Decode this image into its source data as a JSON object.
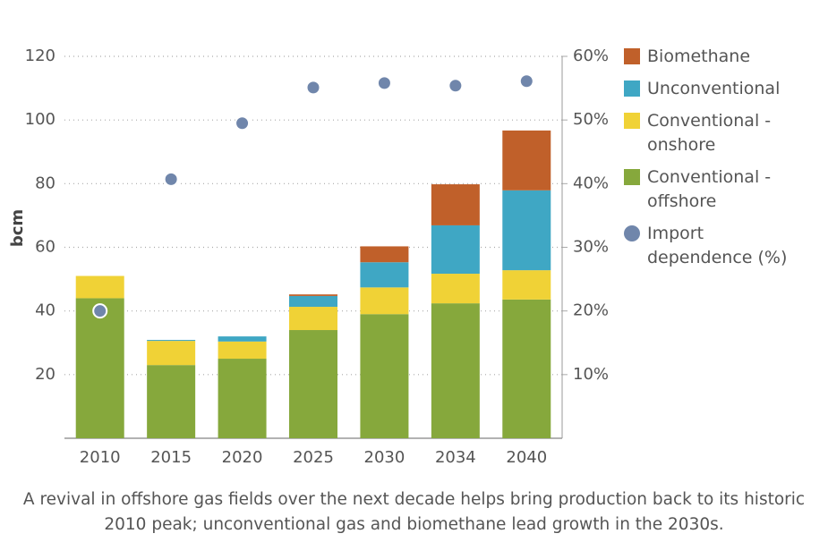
{
  "chart_data": {
    "type": "bar",
    "stacked": true,
    "caption": "A revival in offshore gas fields over the next decade helps bring production back to its historic 2010 peak; unconventional gas and biomethane lead growth in the 2030s.",
    "ylabel": "bcm",
    "categories": [
      "2010",
      "2015",
      "2020",
      "2025",
      "2030",
      "2034",
      "2040"
    ],
    "series": [
      {
        "name": "Conventional - offshore",
        "color": "#86a83c",
        "values": [
          44,
          23,
          25,
          34,
          39,
          42.4,
          43.6
        ]
      },
      {
        "name": "Conventional - onshore",
        "color": "#f0d236",
        "values": [
          7,
          7.6,
          5.4,
          7.3,
          8.4,
          9.3,
          9.2
        ]
      },
      {
        "name": "Unconventional",
        "color": "#3fa7c4",
        "values": [
          0,
          0.3,
          1.6,
          3.4,
          7.9,
          15.2,
          25.1
        ]
      },
      {
        "name": "Biomethane",
        "color": "#c0602a",
        "values": [
          0,
          0,
          0,
          0.5,
          5,
          12.9,
          18.8
        ]
      },
      {
        "name": "Import dependence (%)",
        "color": "#7086ab",
        "type": "scatter",
        "axis": "y2",
        "values": [
          20,
          40.7,
          49.5,
          55.1,
          55.8,
          55.4,
          56.1
        ]
      }
    ],
    "ylim": [
      0,
      120
    ],
    "yticks": [
      20,
      40,
      60,
      80,
      100,
      120
    ],
    "y2lim": [
      0,
      60
    ],
    "y2ticks": [
      {
        "value": 10,
        "label": "10%"
      },
      {
        "value": 20,
        "label": "20%"
      },
      {
        "value": 30,
        "label": "30%"
      },
      {
        "value": 40,
        "label": "40%"
      },
      {
        "value": 50,
        "label": "50%"
      },
      {
        "value": 60,
        "label": "60%"
      }
    ],
    "grid": true,
    "legend": "right"
  }
}
